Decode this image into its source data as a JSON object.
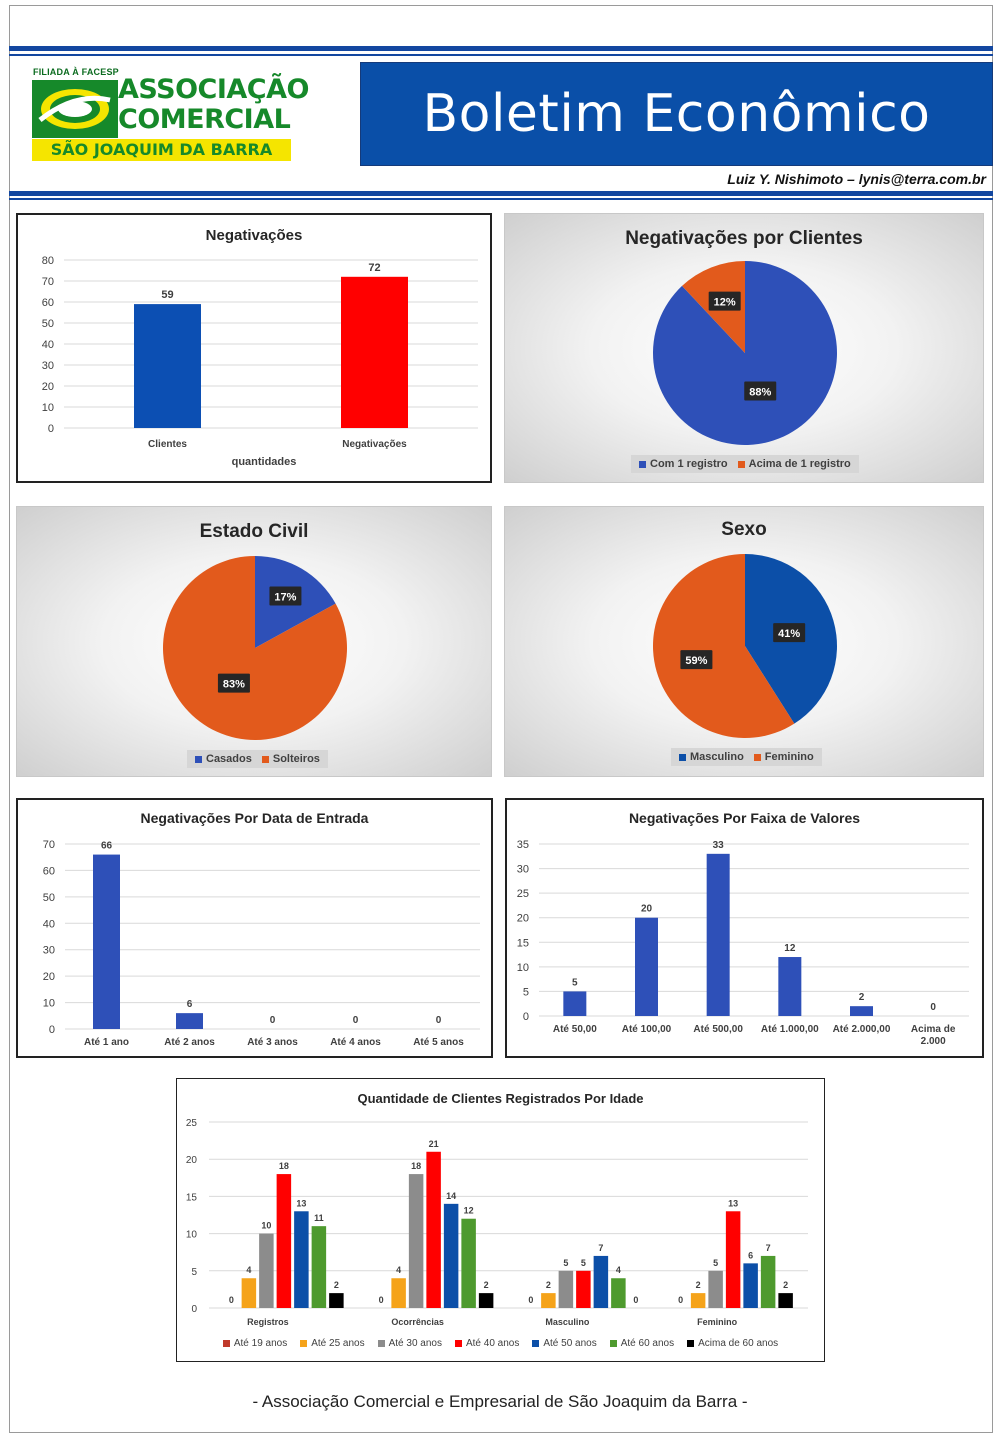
{
  "header": {
    "logo_tag": "FILIADA À FACESP",
    "logo_line1": "ASSOCIAÇÃO",
    "logo_line2": "COMERCIAL",
    "logo_band": "SÃO JOAQUIM DA BARRA",
    "title": "Boletim Econômico",
    "author": "Luiz Y. Nishimoto – lynis@terra.com.br"
  },
  "footer": "- Associação Comercial e Empresarial de São Joaquim da Barra -",
  "colors": {
    "brand_blue": "#0a4fa8",
    "bar_blue": "#0c4fb3",
    "bar_red": "#ff0000",
    "pie_blue": "#2e50b8",
    "pie_orange": "#e25a1c",
    "logo_green": "#16892a",
    "logo_yellow": "#f5e500"
  },
  "chart_data": [
    {
      "type": "bar",
      "title": "Negativações",
      "categories": [
        "Clientes",
        "Negativações"
      ],
      "values": [
        59,
        72
      ],
      "colors": [
        "#0c4fb3",
        "#ff0000"
      ],
      "xlabel": "quantidades",
      "ylim": [
        0,
        80
      ],
      "yticks": [
        0,
        10,
        20,
        30,
        40,
        50,
        60,
        70,
        80
      ],
      "grid": true
    },
    {
      "type": "pie",
      "title": "Negativações por Clientes",
      "labels": [
        "Com 1 registro",
        "Acima de 1 registro"
      ],
      "values": [
        88,
        12
      ],
      "value_labels": [
        "88%",
        "12%"
      ],
      "colors": [
        "#2e50b8",
        "#e25a1c"
      ],
      "legend": "bottom"
    },
    {
      "type": "pie",
      "title": "Estado Civil",
      "labels": [
        "Casados",
        "Solteiros"
      ],
      "values": [
        17,
        83
      ],
      "value_labels": [
        "17%",
        "83%"
      ],
      "colors": [
        "#2e50b8",
        "#e25a1c"
      ],
      "legend": "bottom"
    },
    {
      "type": "pie",
      "title": "Sexo",
      "labels": [
        "Masculino",
        "Feminino"
      ],
      "values": [
        41,
        59
      ],
      "value_labels": [
        "41%",
        "59%"
      ],
      "colors": [
        "#0c4fa8",
        "#e25a1c"
      ],
      "legend": "bottom"
    },
    {
      "type": "bar",
      "title": "Negativações Por Data de Entrada",
      "categories": [
        "Até 1 ano",
        "Até 2 anos",
        "Até 3 anos",
        "Até 4 anos",
        "Até 5 anos"
      ],
      "values": [
        66,
        6,
        0,
        0,
        0
      ],
      "colors": [
        "#2e50b8"
      ],
      "ylim": [
        0,
        70
      ],
      "yticks": [
        0,
        10,
        20,
        30,
        40,
        50,
        60,
        70
      ],
      "grid": true
    },
    {
      "type": "bar",
      "title": "Negativações Por Faixa de Valores",
      "categories": [
        "Até 50,00",
        "Até 100,00",
        "Até 500,00",
        "Até 1.000,00",
        "Até 2.000,00",
        "Acima de 2.000"
      ],
      "values": [
        5,
        20,
        33,
        12,
        2,
        0
      ],
      "colors": [
        "#2e50b8"
      ],
      "ylim": [
        0,
        35
      ],
      "yticks": [
        0,
        5,
        10,
        15,
        20,
        25,
        30,
        35
      ],
      "grid": true
    },
    {
      "type": "bar",
      "title": "Quantidade de Clientes Registrados Por Idade",
      "categories": [
        "Registros",
        "Ocorrências",
        "Masculino",
        "Feminino"
      ],
      "series": [
        {
          "name": "Até 19 anos",
          "color": "#c0392b",
          "values": [
            0,
            0,
            0,
            0
          ]
        },
        {
          "name": "Até 25 anos",
          "color": "#f5a31a",
          "values": [
            4,
            4,
            2,
            2
          ]
        },
        {
          "name": "Até 30 anos",
          "color": "#8c8c8c",
          "values": [
            10,
            18,
            5,
            5
          ]
        },
        {
          "name": "Até 40 anos",
          "color": "#ff0000",
          "values": [
            18,
            21,
            5,
            13
          ]
        },
        {
          "name": "Até 50 anos",
          "color": "#0c4fa8",
          "values": [
            13,
            14,
            7,
            6
          ]
        },
        {
          "name": "Até 60 anos",
          "color": "#4e9a2e",
          "values": [
            11,
            12,
            4,
            7
          ]
        },
        {
          "name": "Acima de 60 anos",
          "color": "#000000",
          "values": [
            2,
            2,
            0,
            2
          ]
        }
      ],
      "ylim": [
        0,
        25
      ],
      "yticks": [
        0,
        5,
        10,
        15,
        20,
        25
      ],
      "grid": true,
      "legend": "bottom"
    }
  ]
}
